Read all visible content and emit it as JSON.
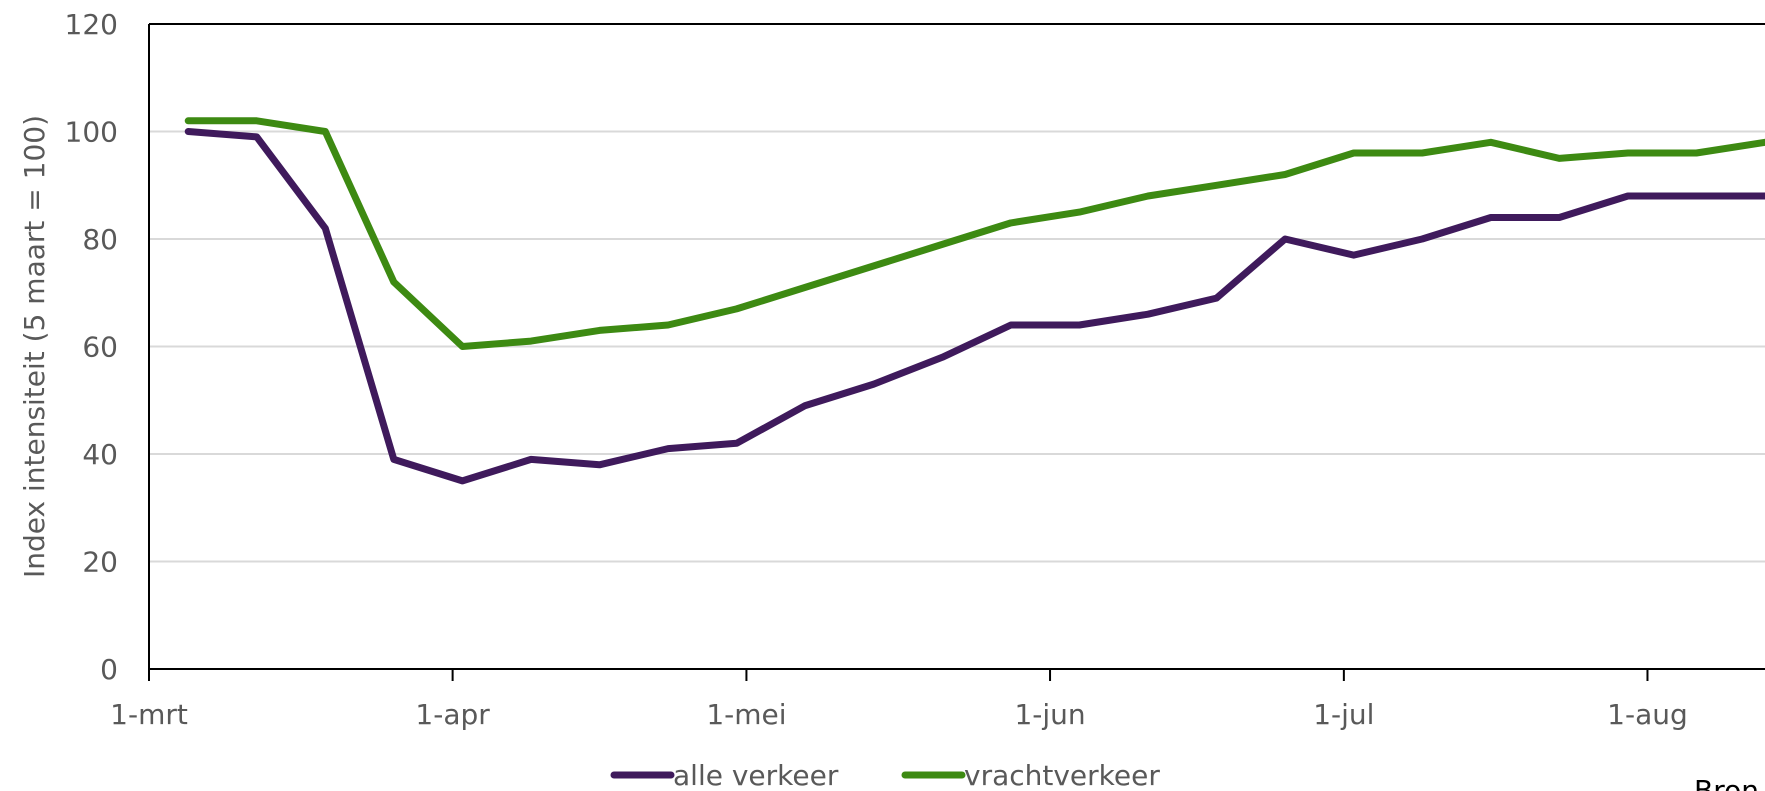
{
  "chart_data": {
    "type": "line",
    "title": "",
    "xlabel": "",
    "ylabel": "Index intensiteit  (5 maart = 100)",
    "ylim": [
      0,
      120
    ],
    "yticks": [
      0,
      20,
      40,
      60,
      80,
      100,
      120
    ],
    "xlim": [
      "2020-03-01",
      "2020-08-13"
    ],
    "xticks": [
      {
        "date": "2020-03-01",
        "label": "1-mrt"
      },
      {
        "date": "2020-04-01",
        "label": "1-apr"
      },
      {
        "date": "2020-05-01",
        "label": "1-mei"
      },
      {
        "date": "2020-06-01",
        "label": "1-jun"
      },
      {
        "date": "2020-07-01",
        "label": "1-jul"
      },
      {
        "date": "2020-08-01",
        "label": "1-aug"
      }
    ],
    "grid": "horizontal",
    "legend_position": "bottom",
    "series": [
      {
        "name": "alle verkeer",
        "color": "#3f1a5c",
        "points": [
          [
            "2020-03-05",
            100
          ],
          [
            "2020-03-12",
            99
          ],
          [
            "2020-03-19",
            82
          ],
          [
            "2020-03-26",
            39
          ],
          [
            "2020-04-02",
            35
          ],
          [
            "2020-04-09",
            39
          ],
          [
            "2020-04-16",
            38
          ],
          [
            "2020-04-23",
            41
          ],
          [
            "2020-04-30",
            42
          ],
          [
            "2020-05-07",
            49
          ],
          [
            "2020-05-14",
            53
          ],
          [
            "2020-05-21",
            58
          ],
          [
            "2020-05-28",
            64
          ],
          [
            "2020-06-04",
            64
          ],
          [
            "2020-06-11",
            66
          ],
          [
            "2020-06-18",
            69
          ],
          [
            "2020-06-25",
            80
          ],
          [
            "2020-07-02",
            77
          ],
          [
            "2020-07-09",
            80
          ],
          [
            "2020-07-16",
            84
          ],
          [
            "2020-07-23",
            84
          ],
          [
            "2020-07-30",
            88
          ],
          [
            "2020-08-06",
            88
          ],
          [
            "2020-08-13",
            88
          ]
        ]
      },
      {
        "name": "vrachtverkeer",
        "color": "#3d8a12",
        "points": [
          [
            "2020-03-05",
            102
          ],
          [
            "2020-03-12",
            102
          ],
          [
            "2020-03-19",
            100
          ],
          [
            "2020-03-26",
            72
          ],
          [
            "2020-04-02",
            60
          ],
          [
            "2020-04-09",
            61
          ],
          [
            "2020-04-16",
            63
          ],
          [
            "2020-04-23",
            64
          ],
          [
            "2020-04-30",
            67
          ],
          [
            "2020-05-07",
            71
          ],
          [
            "2020-05-14",
            75
          ],
          [
            "2020-05-21",
            79
          ],
          [
            "2020-05-28",
            83
          ],
          [
            "2020-06-04",
            85
          ],
          [
            "2020-06-11",
            88
          ],
          [
            "2020-06-18",
            90
          ],
          [
            "2020-06-25",
            92
          ],
          [
            "2020-07-02",
            96
          ],
          [
            "2020-07-09",
            96
          ],
          [
            "2020-07-16",
            98
          ],
          [
            "2020-07-23",
            95
          ],
          [
            "2020-07-30",
            96
          ],
          [
            "2020-08-06",
            96
          ],
          [
            "2020-08-13",
            98
          ]
        ]
      }
    ],
    "source_text": "Bron"
  }
}
